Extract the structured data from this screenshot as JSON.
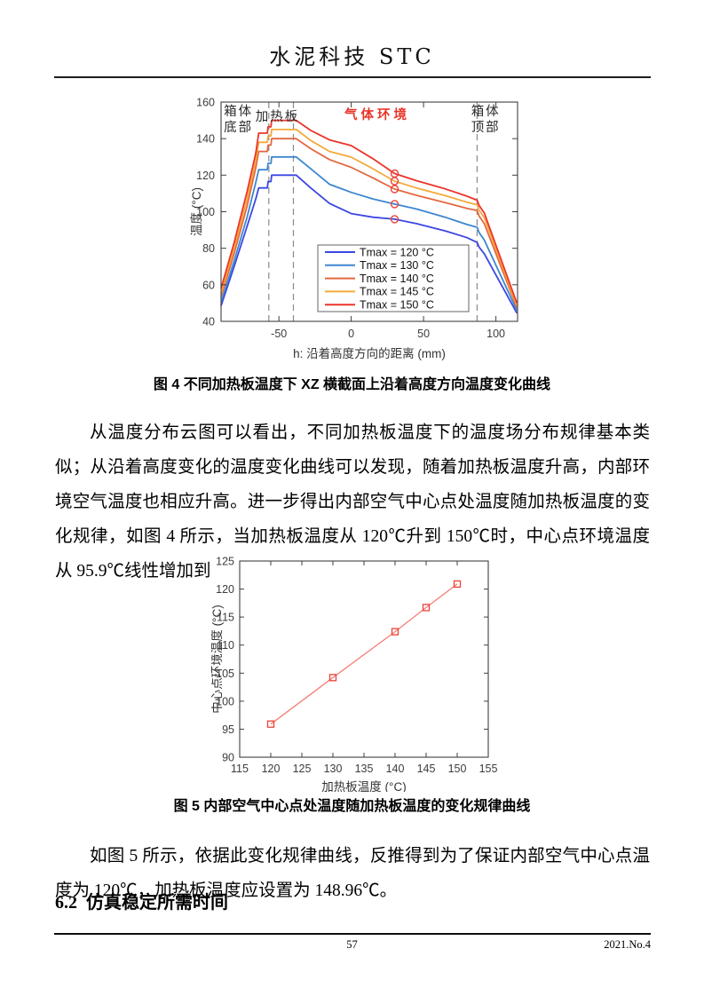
{
  "header": {
    "title": "水泥科技 STC"
  },
  "figure4": {
    "caption": "图 4 不同加热板温度下 XZ 横截面上沿着高度方向温度变化曲线"
  },
  "figure5": {
    "caption": "图 5 内部空气中心点处温度随加热板温度的变化规律曲线"
  },
  "paragraphs": {
    "p1": "从温度分布云图可以看出，不同加热板温度下的温度场分布规律基本类似；从沿着高度变化的温度变化曲线可以发现，随着加热板温度升高，内部环境空气温度也相应升高。进一步得出内部空气中心点处温度随加热板温度的变化规律，如图 4 所示，当加热板温度从 120℃升到 150℃时，中心点环境温度从 95.9℃线性增加到 120.9℃。",
    "p2": "如图 5 所示，依据此变化规律曲线，反推得到为了保证内部空气中心点温度为 120℃，加热板温度应设置为 148.96℃。"
  },
  "section": {
    "number": "6.2",
    "title": "仿真稳定所需时间"
  },
  "footer": {
    "page_number": "57",
    "issue": "2021.No.4"
  },
  "chart_data": [
    {
      "type": "line",
      "title": "",
      "xlabel": "h: 沿着高度方向的距离 (mm)",
      "ylabel": "温度 (°C)",
      "xlim": [
        -90,
        115
      ],
      "ylim": [
        40,
        160
      ],
      "xticks": [
        -50,
        0,
        50,
        100
      ],
      "yticks": [
        40,
        60,
        80,
        100,
        120,
        140,
        160
      ],
      "grid": false,
      "legend_position": "inside lower-center",
      "dashed_lines_x": [
        -57,
        -40,
        87
      ],
      "dashed_color": "#8a8a8a",
      "marker_x": 30,
      "marker_color": "#e8453c",
      "annotations": [
        {
          "lines": [
            "箱体",
            "底部"
          ],
          "x": -78,
          "y": 24,
          "line_step": 18,
          "color": "#2b2b2b"
        },
        {
          "lines": [
            "加热板"
          ],
          "x": -51,
          "y": 30,
          "line_step": 18,
          "color": "#2b2b2b"
        },
        {
          "lines": [
            "气体环境"
          ],
          "x": 18,
          "y": 28,
          "line_step": 18,
          "color": "#e8352a"
        },
        {
          "lines": [
            "箱体",
            "顶部"
          ],
          "x": 93,
          "y": 24,
          "line_step": 18,
          "color": "#2b2b2b"
        }
      ],
      "series": [
        {
          "name": "Tmax = 120 °C",
          "color": "#3b47e2",
          "marker_value": 95.9,
          "points": [
            [
              -90,
              48.5
            ],
            [
              -81,
              70
            ],
            [
              -72,
              92
            ],
            [
              -66,
              107
            ],
            [
              -64,
              113
            ],
            [
              -58,
              113
            ],
            [
              -57.5,
              116.5
            ],
            [
              -55.5,
              116.5
            ],
            [
              -55,
              120
            ],
            [
              -38,
              120
            ],
            [
              -28,
              113
            ],
            [
              -15,
              104.5
            ],
            [
              0,
              99
            ],
            [
              15,
              97
            ],
            [
              30,
              95.9
            ],
            [
              45,
              93.5
            ],
            [
              65,
              89.5
            ],
            [
              80,
              85.8
            ],
            [
              87,
              83.2
            ],
            [
              88.5,
              80.5
            ],
            [
              92,
              77
            ],
            [
              114.5,
              44.5
            ]
          ]
        },
        {
          "name": "Tmax = 130 °C",
          "color": "#3d87cf",
          "marker_value": 104.2,
          "points": [
            [
              -90,
              50.5
            ],
            [
              -81,
              73
            ],
            [
              -72,
              97
            ],
            [
              -66,
              116
            ],
            [
              -64,
              123
            ],
            [
              -58,
              123
            ],
            [
              -57.5,
              126.5
            ],
            [
              -55.5,
              126.5
            ],
            [
              -55,
              130
            ],
            [
              -38,
              130
            ],
            [
              -28,
              123.5
            ],
            [
              -15,
              115
            ],
            [
              0,
              110.6
            ],
            [
              15,
              107
            ],
            [
              30,
              104.2
            ],
            [
              45,
              101.5
            ],
            [
              65,
              97
            ],
            [
              80,
              93
            ],
            [
              87,
              91.5
            ],
            [
              88.5,
              88.5
            ],
            [
              92,
              84.5
            ],
            [
              114.5,
              46
            ]
          ]
        },
        {
          "name": "Tmax = 140 °C",
          "color": "#e2683f",
          "marker_value": 112.4,
          "points": [
            [
              -90,
              53.5
            ],
            [
              -81,
              77
            ],
            [
              -72,
              103
            ],
            [
              -66,
              124
            ],
            [
              -64,
              133
            ],
            [
              -58,
              133
            ],
            [
              -57.5,
              136.5
            ],
            [
              -55.5,
              136.5
            ],
            [
              -55,
              140
            ],
            [
              -38,
              140
            ],
            [
              -28,
              134.5
            ],
            [
              -15,
              128.5
            ],
            [
              0,
              124.3
            ],
            [
              15,
              118.5
            ],
            [
              30,
              112.4
            ],
            [
              45,
              109
            ],
            [
              65,
              105
            ],
            [
              80,
              101.8
            ],
            [
              87,
              100.7
            ],
            [
              88.5,
              97.5
            ],
            [
              92,
              93.5
            ],
            [
              114.5,
              47.5
            ]
          ]
        },
        {
          "name": "Tmax = 145 °C",
          "color": "#f3a93a",
          "marker_value": 116.7,
          "points": [
            [
              -90,
              55.5
            ],
            [
              -81,
              80
            ],
            [
              -72,
              107
            ],
            [
              -66,
              128
            ],
            [
              -64,
              138
            ],
            [
              -58,
              138
            ],
            [
              -57.5,
              141.5
            ],
            [
              -55.5,
              141.5
            ],
            [
              -55,
              145
            ],
            [
              -38,
              145
            ],
            [
              -28,
              139
            ],
            [
              -15,
              133
            ],
            [
              0,
              129.9
            ],
            [
              15,
              123.5
            ],
            [
              30,
              116.7
            ],
            [
              45,
              113
            ],
            [
              65,
              108.8
            ],
            [
              80,
              105.2
            ],
            [
              87,
              103.8
            ],
            [
              88.5,
              100.8
            ],
            [
              92,
              96.8
            ],
            [
              114.5,
              48.5
            ]
          ]
        },
        {
          "name": "Tmax = 150 °C",
          "color": "#ec352b",
          "marker_value": 120.9,
          "points": [
            [
              -90,
              58
            ],
            [
              -81,
              83
            ],
            [
              -72,
              111
            ],
            [
              -66,
              132
            ],
            [
              -64,
              143
            ],
            [
              -58,
              143
            ],
            [
              -57.5,
              146.5
            ],
            [
              -55.5,
              146.5
            ],
            [
              -55,
              150
            ],
            [
              -38,
              150
            ],
            [
              -28,
              144.5
            ],
            [
              -15,
              139.3
            ],
            [
              0,
              136.2
            ],
            [
              15,
              129
            ],
            [
              30,
              120.9
            ],
            [
              45,
              117
            ],
            [
              65,
              112.5
            ],
            [
              80,
              108.5
            ],
            [
              87,
              106.3
            ],
            [
              88.5,
              103.3
            ],
            [
              92,
              99.3
            ],
            [
              114.5,
              50
            ]
          ]
        }
      ]
    },
    {
      "type": "line",
      "title": "",
      "xlabel": "加热板温度 (°C)",
      "ylabel": "中心点环境温度 (°C)",
      "xlim": [
        115,
        155
      ],
      "ylim": [
        90,
        125
      ],
      "xticks": [
        115,
        120,
        125,
        130,
        135,
        140,
        145,
        150,
        155
      ],
      "yticks": [
        90,
        95,
        100,
        105,
        110,
        115,
        120,
        125
      ],
      "grid": false,
      "x": [
        120,
        130,
        140,
        145,
        150
      ],
      "y": [
        95.9,
        104.2,
        112.4,
        116.7,
        120.9
      ],
      "line_color": "#f57e76",
      "marker": "square-open",
      "marker_color": "#ee4238"
    }
  ]
}
